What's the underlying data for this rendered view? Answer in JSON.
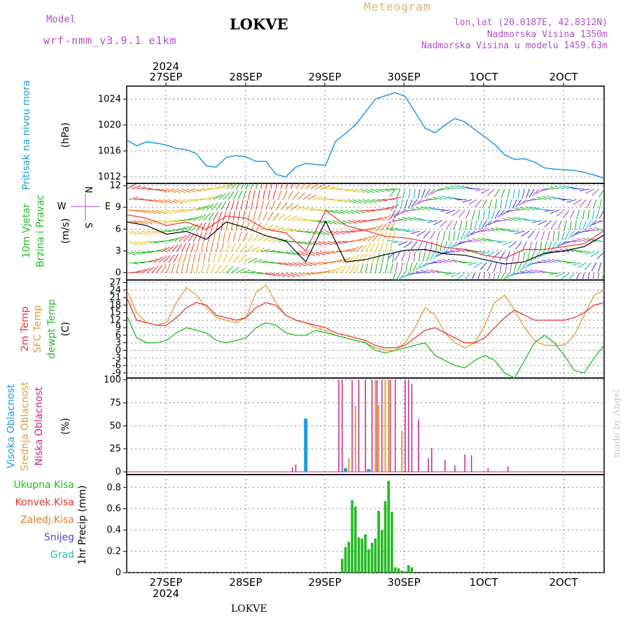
{
  "header": {
    "model_label": "Model",
    "model_run": "wrf-nmm_v3.9.1 e1km",
    "station": "LOKVE",
    "product": "Meteogram",
    "coords": "lon,lat (20.0187E, 42.8312N)",
    "elevation": "Nadmorska Visina 1350m",
    "model_elevation": "Nadmorska Visina u modelu 1459.63m",
    "footer_station": "LOKVE",
    "credit": "made by Angel"
  },
  "time_axis": {
    "year": "2024",
    "days": [
      "27SEP",
      "28SEP",
      "29SEP",
      "30SEP",
      "1OCT",
      "2OCT"
    ]
  },
  "chart_data": [
    {
      "type": "line",
      "panel": "pressure",
      "ylabel": [
        "Pritisak na nivou mora",
        "(hPa)"
      ],
      "yticks": [
        1012,
        1016,
        1020,
        1024
      ],
      "ylim": [
        1011,
        1026
      ],
      "x_hours": [
        0,
        3,
        6,
        9,
        12,
        15,
        18,
        21,
        24,
        27,
        30,
        33,
        36,
        39,
        42,
        45,
        48,
        51,
        54,
        57,
        60,
        63,
        66,
        69,
        72,
        75,
        78,
        81,
        84,
        87,
        90,
        93,
        96,
        99,
        102,
        105,
        108,
        111,
        114,
        117,
        120,
        123,
        126,
        129,
        132,
        135,
        138,
        141,
        144
      ],
      "series": [
        {
          "values": [
            1017.7,
            1016.8,
            1017.4,
            1017.2,
            1016.9,
            1016.4,
            1016.2,
            1015.6,
            1013.7,
            1013.5,
            1015.0,
            1015.3,
            1015.1,
            1014.4,
            1014.4,
            1012.4,
            1012.0,
            1013.5,
            1014.1,
            1013.9,
            1013.8,
            1017.5,
            1018.7,
            1020.0,
            1022.0,
            1024.0,
            1024.5,
            1025.0,
            1024.4,
            1022.0,
            1019.5,
            1018.8,
            1020.0,
            1021.0,
            1020.5,
            1019.3,
            1018.2,
            1017.0,
            1015.4,
            1014.7,
            1014.8,
            1014.3,
            1013.4,
            1013.2,
            1013.1,
            1013.0,
            1012.7,
            1012.3,
            1011.8
          ]
        }
      ]
    },
    {
      "type": "line",
      "panel": "wind",
      "ylabel": [
        "10m Vjetar",
        "Brzina i Pravac",
        "(m/s)"
      ],
      "compass": {
        "north": "N",
        "west": "W",
        "east": "E",
        "south": "S"
      },
      "yticks": [
        0,
        3,
        6,
        9,
        12
      ],
      "ylim": [
        -1,
        12.3
      ],
      "x_hours": [
        0,
        6,
        12,
        18,
        24,
        30,
        36,
        42,
        48,
        54,
        60,
        66,
        72,
        78,
        84,
        90,
        96,
        102,
        108,
        114,
        120,
        126,
        132,
        138,
        144
      ],
      "series": [
        {
          "name": "speed",
          "values": [
            7.0,
            6.5,
            5.3,
            5.7,
            4.6,
            7.0,
            6.2,
            5.1,
            4.4,
            1.5,
            7.1,
            1.5,
            1.8,
            2.5,
            3.1,
            3.2,
            2.6,
            2.4,
            1.8,
            1.2,
            1.5,
            2.7,
            3.0,
            3.6,
            5.2
          ]
        },
        {
          "name": "gust",
          "values": [
            8.0,
            7.5,
            6.5,
            7.0,
            6.0,
            7.8,
            7.5,
            6.0,
            5.5,
            3.0,
            8.6,
            6.5,
            5.8,
            5.0,
            4.8,
            4.3,
            3.5,
            3.2,
            2.4,
            2.0,
            3.2,
            3.2,
            3.6,
            4.0,
            5.8
          ]
        }
      ]
    },
    {
      "type": "line",
      "panel": "temperature",
      "ylabel": [
        "2m Temp",
        "SFC Temp",
        "dewpt Temp",
        "(C)"
      ],
      "yticks": [
        -9,
        -6,
        -3,
        0,
        3,
        6,
        9,
        12,
        15,
        18,
        21,
        24,
        27
      ],
      "ylim": [
        -11,
        28
      ],
      "x_hours": [
        0,
        3,
        6,
        9,
        12,
        15,
        18,
        21,
        24,
        27,
        30,
        33,
        36,
        39,
        42,
        45,
        48,
        51,
        54,
        57,
        60,
        63,
        66,
        69,
        72,
        75,
        78,
        81,
        84,
        87,
        90,
        93,
        96,
        99,
        102,
        105,
        108,
        111,
        114,
        117,
        120,
        123,
        126,
        129,
        132,
        135,
        138,
        141,
        144
      ],
      "series": [
        {
          "name": "2m Temp",
          "values": [
            21,
            12,
            11,
            10,
            10,
            13,
            17,
            19,
            18,
            14,
            13,
            12,
            13,
            17,
            19,
            18,
            14,
            12,
            11,
            10,
            9,
            7,
            6,
            5,
            4,
            2,
            1,
            1,
            2,
            5,
            8,
            9,
            7,
            5,
            3,
            3,
            5,
            9,
            13,
            16,
            14,
            12,
            12,
            12,
            12,
            13,
            15,
            18,
            19
          ]
        },
        {
          "name": "SFC Temp",
          "values": [
            24,
            15,
            11,
            10,
            11,
            19,
            25,
            22,
            17,
            13,
            12,
            11,
            13,
            23,
            26,
            19,
            14,
            12,
            11,
            9,
            8,
            6,
            5,
            4,
            3,
            1,
            0,
            0,
            3,
            9,
            17,
            14,
            7,
            3,
            1,
            3,
            10,
            19,
            22,
            16,
            9,
            4,
            2,
            2,
            2,
            6,
            14,
            22,
            24
          ]
        },
        {
          "name": "dewpt Temp",
          "values": [
            14,
            5,
            3,
            3,
            4,
            7,
            9,
            8,
            7,
            4,
            3,
            4,
            5,
            9,
            11,
            10,
            7,
            6,
            6,
            8,
            7,
            6,
            5,
            4,
            3,
            0,
            -1,
            0,
            1,
            2,
            3,
            -2,
            -4,
            -6,
            -7,
            -4,
            -2,
            -4,
            -9,
            -11,
            -4,
            3,
            6,
            3,
            -2,
            -8,
            -9,
            -3,
            2
          ]
        }
      ]
    },
    {
      "type": "bar",
      "panel": "cloud",
      "ylabel": [
        "Visoka Oblacnost",
        "Srednja Oblacnost",
        "Niska Oblacnost",
        "(%)"
      ],
      "yticks": [
        0,
        25,
        50,
        75,
        100
      ],
      "ylim": [
        -3,
        102
      ],
      "series": [
        {
          "name": "Visoka Oblacnost",
          "x_hours": [
            54,
            66,
            73
          ],
          "values": [
            58,
            4,
            3
          ]
        },
        {
          "name": "Srednja Oblacnost",
          "x_hours": [
            67,
            69,
            75,
            76,
            78,
            79,
            83
          ],
          "values": [
            15,
            72,
            99,
            73,
            100,
            100,
            45
          ]
        },
        {
          "name": "Niska Oblacnost",
          "x_hours": [
            50,
            51,
            64,
            65,
            68,
            70,
            72,
            74,
            75.5,
            77,
            79.5,
            81,
            84,
            85,
            86,
            88,
            91,
            92,
            96,
            99,
            102,
            104,
            109,
            115
          ],
          "values": [
            5,
            8,
            100,
            100,
            100,
            100,
            100,
            100,
            100,
            100,
            100,
            100,
            100,
            100,
            95,
            57,
            15,
            26,
            13,
            7,
            19,
            18,
            4,
            6
          ]
        }
      ]
    },
    {
      "type": "bar",
      "panel": "precip",
      "ylabel": [
        "1hr Precip (mm)"
      ],
      "yticks": [
        0,
        0.2,
        0.4,
        0.6,
        0.8
      ],
      "ylim": [
        0,
        0.92
      ],
      "legend": [
        "Ukupna Kisa",
        "Konvek.Kisa",
        "Zaledj.Kisa",
        "Snijeg",
        "Grad"
      ],
      "legend_colors": [
        "#22bb22",
        "#ee3333",
        "#ee7722",
        "#4444ee",
        "#22bbbb"
      ],
      "x_hours": [
        65,
        66,
        67,
        68,
        69,
        70,
        71,
        72,
        73,
        74,
        75,
        76,
        77,
        78,
        79,
        80,
        81,
        82,
        83,
        84,
        85,
        86
      ],
      "values": [
        0.13,
        0.24,
        0.29,
        0.68,
        0.62,
        0.33,
        0.32,
        0.36,
        0.22,
        0.28,
        0.32,
        0.58,
        0.4,
        0.67,
        0.86,
        0.57,
        0.05,
        0.04,
        0.02,
        0.01,
        0.07,
        0.05
      ]
    }
  ]
}
